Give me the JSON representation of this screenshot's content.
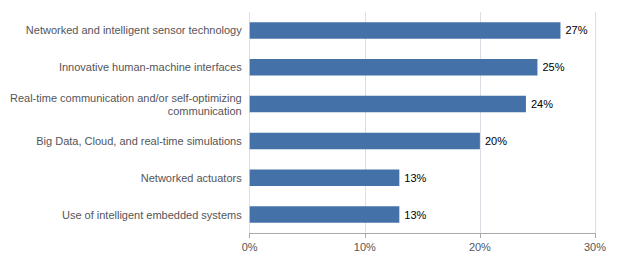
{
  "chart_data": {
    "type": "bar",
    "orientation": "horizontal",
    "categories": [
      "Use of intelligent embedded systems",
      "Networked actuators",
      "Big Data, Cloud, and real-time simulations",
      "Real-time communication and/or self-optimizing\ncommunication",
      "Innovative human-machine interfaces",
      "Networked and intelligent sensor technology"
    ],
    "values": [
      0.13,
      0.13,
      0.2,
      0.24,
      0.25,
      0.27
    ],
    "value_labels": [
      "13%",
      "13%",
      "20%",
      "24%",
      "25%",
      "27%"
    ],
    "data_labels": true,
    "color": "#4472a8",
    "xlim": [
      0,
      0.3
    ],
    "xticks": [
      {
        "value": 0.0,
        "label": "0%"
      },
      {
        "value": 0.1,
        "label": "10%"
      },
      {
        "value": 0.2,
        "label": "20%"
      },
      {
        "value": 0.3,
        "label": "30%"
      }
    ],
    "grid": true
  }
}
